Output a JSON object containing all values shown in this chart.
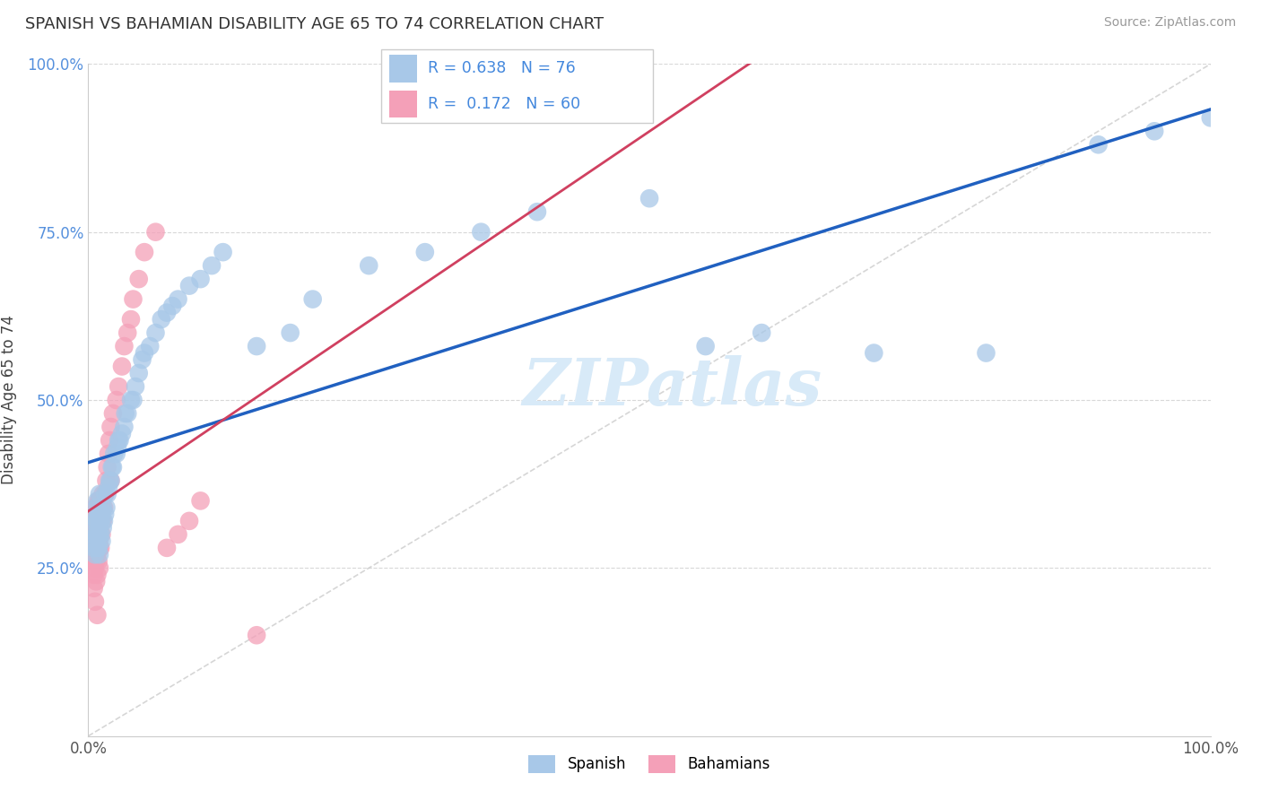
{
  "title": "SPANISH VS BAHAMIAN DISABILITY AGE 65 TO 74 CORRELATION CHART",
  "source": "Source: ZipAtlas.com",
  "ylabel": "Disability Age 65 to 74",
  "xlim": [
    0.0,
    1.0
  ],
  "ylim": [
    0.0,
    1.0
  ],
  "xtick_labels": [
    "0.0%",
    "100.0%"
  ],
  "ytick_labels": [
    "25.0%",
    "50.0%",
    "75.0%",
    "100.0%"
  ],
  "ytick_positions": [
    0.25,
    0.5,
    0.75,
    1.0
  ],
  "spanish_color": "#a8c8e8",
  "bahamian_color": "#f4a0b8",
  "spanish_line_color": "#2060c0",
  "bahamian_line_color": "#d04060",
  "diag_color": "#cccccc",
  "R_spanish": 0.638,
  "N_spanish": 76,
  "R_bahamian": 0.172,
  "N_bahamian": 60,
  "legend_text_color": "#4488dd",
  "spanish_x": [
    0.005,
    0.005,
    0.005,
    0.006,
    0.006,
    0.007,
    0.007,
    0.007,
    0.008,
    0.008,
    0.008,
    0.008,
    0.009,
    0.009,
    0.009,
    0.01,
    0.01,
    0.01,
    0.01,
    0.01,
    0.011,
    0.011,
    0.012,
    0.012,
    0.013,
    0.013,
    0.014,
    0.015,
    0.015,
    0.016,
    0.017,
    0.018,
    0.019,
    0.02,
    0.021,
    0.022,
    0.023,
    0.025,
    0.026,
    0.027,
    0.028,
    0.03,
    0.032,
    0.033,
    0.035,
    0.038,
    0.04,
    0.042,
    0.045,
    0.048,
    0.05,
    0.055,
    0.06,
    0.065,
    0.07,
    0.075,
    0.08,
    0.09,
    0.1,
    0.11,
    0.12,
    0.15,
    0.18,
    0.2,
    0.25,
    0.3,
    0.35,
    0.4,
    0.5,
    0.55,
    0.6,
    0.7,
    0.8,
    0.9,
    0.95,
    1.0
  ],
  "spanish_y": [
    0.28,
    0.3,
    0.32,
    0.27,
    0.29,
    0.3,
    0.32,
    0.34,
    0.28,
    0.3,
    0.32,
    0.35,
    0.28,
    0.3,
    0.33,
    0.27,
    0.29,
    0.31,
    0.33,
    0.36,
    0.3,
    0.32,
    0.29,
    0.33,
    0.31,
    0.34,
    0.32,
    0.33,
    0.36,
    0.34,
    0.36,
    0.37,
    0.38,
    0.38,
    0.4,
    0.4,
    0.42,
    0.42,
    0.43,
    0.44,
    0.44,
    0.45,
    0.46,
    0.48,
    0.48,
    0.5,
    0.5,
    0.52,
    0.54,
    0.56,
    0.57,
    0.58,
    0.6,
    0.62,
    0.63,
    0.64,
    0.65,
    0.67,
    0.68,
    0.7,
    0.72,
    0.58,
    0.6,
    0.65,
    0.7,
    0.72,
    0.75,
    0.78,
    0.8,
    0.58,
    0.6,
    0.57,
    0.57,
    0.88,
    0.9,
    0.92
  ],
  "bahamian_x": [
    0.003,
    0.004,
    0.004,
    0.005,
    0.005,
    0.005,
    0.005,
    0.005,
    0.006,
    0.006,
    0.006,
    0.006,
    0.006,
    0.007,
    0.007,
    0.007,
    0.007,
    0.008,
    0.008,
    0.008,
    0.008,
    0.008,
    0.009,
    0.009,
    0.009,
    0.009,
    0.01,
    0.01,
    0.01,
    0.01,
    0.011,
    0.011,
    0.012,
    0.012,
    0.013,
    0.013,
    0.014,
    0.015,
    0.016,
    0.017,
    0.018,
    0.019,
    0.02,
    0.02,
    0.022,
    0.025,
    0.027,
    0.03,
    0.032,
    0.035,
    0.038,
    0.04,
    0.045,
    0.05,
    0.06,
    0.07,
    0.08,
    0.09,
    0.1,
    0.15
  ],
  "bahamian_y": [
    0.26,
    0.28,
    0.3,
    0.24,
    0.27,
    0.3,
    0.33,
    0.22,
    0.25,
    0.28,
    0.31,
    0.34,
    0.2,
    0.23,
    0.26,
    0.29,
    0.32,
    0.24,
    0.27,
    0.3,
    0.33,
    0.18,
    0.26,
    0.29,
    0.32,
    0.35,
    0.25,
    0.28,
    0.31,
    0.35,
    0.28,
    0.32,
    0.3,
    0.34,
    0.32,
    0.36,
    0.34,
    0.36,
    0.38,
    0.4,
    0.42,
    0.44,
    0.38,
    0.46,
    0.48,
    0.5,
    0.52,
    0.55,
    0.58,
    0.6,
    0.62,
    0.65,
    0.68,
    0.72,
    0.75,
    0.28,
    0.3,
    0.32,
    0.35,
    0.15
  ]
}
